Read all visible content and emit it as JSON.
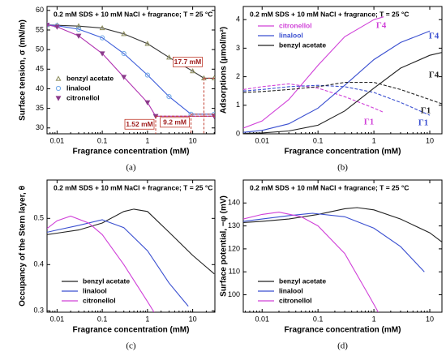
{
  "chart_data": [
    {
      "type": "line",
      "panel": "(a)",
      "title": "0.2 mM SDS + 10 mM NaCl + fragrance; T = 25 °C",
      "xlabel": "Fragrance concentration (mM)",
      "ylabel": "Surface tension, σ (mN/m)",
      "xscale": "log",
      "xlim": [
        0.006,
        31
      ],
      "ylim": [
        28.5,
        61
      ],
      "xticks": [
        0.01,
        0.1,
        1,
        10
      ],
      "yticks": [
        30,
        35,
        40,
        45,
        50,
        55,
        60
      ],
      "legend": "lower left",
      "series": [
        {
          "name": "benzyl acetate",
          "color": "#333333",
          "marker": "triangle",
          "markercolor": "#8a8a5a",
          "x": [
            0.006,
            0.01,
            0.03,
            0.1,
            0.3,
            1,
            3,
            10,
            17.7,
            30
          ],
          "values": [
            56.3,
            56.2,
            56,
            55.5,
            54,
            51.5,
            48,
            44.5,
            42.7,
            42.7
          ]
        },
        {
          "name": "linalool",
          "color": "#3a5bd9",
          "marker": "circle",
          "markercolor": "#6fa8e8",
          "x": [
            0.006,
            0.01,
            0.03,
            0.1,
            0.3,
            1,
            3,
            9.2,
            30
          ],
          "values": [
            56.3,
            56.1,
            55.2,
            53,
            49,
            43.5,
            38,
            33.5,
            33.5
          ]
        },
        {
          "name": "citronellol",
          "color": "#b030b0",
          "marker": "triangle-down",
          "markercolor": "#8a3a8a",
          "x": [
            0.006,
            0.01,
            0.03,
            0.1,
            0.3,
            1,
            1.52,
            30
          ],
          "values": [
            56.3,
            55.8,
            53.5,
            49,
            43,
            36.5,
            33,
            33
          ]
        }
      ],
      "annotations": [
        {
          "text": "17.7 mM",
          "x": 17.7,
          "y": 42.7
        },
        {
          "text": "9.2 mM",
          "x": 9.2,
          "y": 33.5
        },
        {
          "text": "1.52 mM",
          "x": 1.52,
          "y": 33
        }
      ]
    },
    {
      "type": "line",
      "panel": "(b)",
      "title": "0.2 mM SDS + 10 mM NaCl + fragrance; T = 25 °C",
      "xlabel": "Fragrance concentration (mM)",
      "ylabel": "Adsorptions (μmol/m²)",
      "xscale": "log",
      "xlim": [
        0.0046,
        16.5
      ],
      "ylim": [
        0,
        4.46
      ],
      "xticks": [
        0.01,
        0.1,
        1,
        10
      ],
      "yticks": [
        0,
        1,
        2,
        3,
        4
      ],
      "legend": "upper left",
      "series": [
        {
          "name": "citronellol",
          "color": "#d040d8",
          "x": [
            0.0046,
            0.01,
            0.03,
            0.1,
            0.3,
            1,
            1.5
          ],
          "values": [
            0.2,
            0.45,
            1.2,
            2.4,
            3.4,
            4.0,
            4.1
          ],
          "gamma1": [
            1.55,
            1.65,
            1.75,
            1.6,
            1.3,
            0.9,
            0.75
          ]
        },
        {
          "name": "linalool",
          "color": "#3a4fd0",
          "x": [
            0.0046,
            0.01,
            0.03,
            0.1,
            0.3,
            1,
            3,
            10
          ],
          "values": [
            0.05,
            0.12,
            0.35,
            0.9,
            1.7,
            2.6,
            3.2,
            3.6
          ],
          "gamma1": [
            1.5,
            1.55,
            1.65,
            1.7,
            1.65,
            1.45,
            1.1,
            0.65
          ]
        },
        {
          "name": "benzyl acetate",
          "color": "#222222",
          "x": [
            0.0046,
            0.01,
            0.03,
            0.1,
            0.3,
            1,
            3,
            10,
            16.5
          ],
          "values": [
            0.01,
            0.03,
            0.1,
            0.3,
            0.8,
            1.6,
            2.3,
            2.75,
            2.85
          ],
          "gamma1": [
            1.45,
            1.48,
            1.55,
            1.65,
            1.8,
            1.8,
            1.55,
            1.2,
            1.05
          ]
        }
      ],
      "annotations": [
        {
          "text": "Γ4",
          "color": "#d040d8"
        },
        {
          "text": "Γ4",
          "color": "#3a4fd0"
        },
        {
          "text": "Γ4",
          "color": "#222222"
        },
        {
          "text": "Γ1",
          "color": "#222222"
        },
        {
          "text": "Γ1",
          "color": "#d040d8"
        },
        {
          "text": "Γ1",
          "color": "#3a4fd0"
        }
      ]
    },
    {
      "type": "line",
      "panel": "(c)",
      "title": "0.2 mM SDS + 10 mM NaCl + fragrance; T = 25 °C",
      "xlabel": "Fragrance concentration (mM)",
      "ylabel": "Occupancy of the Stern layer, θ",
      "xscale": "log",
      "xlim": [
        0.006,
        31
      ],
      "ylim": [
        0.297,
        0.583
      ],
      "xticks": [
        0.01,
        0.1,
        1,
        10
      ],
      "yticks": [
        0.3,
        0.4,
        0.5
      ],
      "legend": "lower left",
      "series": [
        {
          "name": "benzyl acetate",
          "color": "#222222",
          "x": [
            0.006,
            0.01,
            0.03,
            0.1,
            0.3,
            0.5,
            1,
            3,
            10,
            30
          ],
          "values": [
            0.465,
            0.468,
            0.475,
            0.49,
            0.515,
            0.52,
            0.515,
            0.47,
            0.42,
            0.38
          ]
        },
        {
          "name": "linalool",
          "color": "#3a4fd0",
          "x": [
            0.006,
            0.01,
            0.03,
            0.1,
            0.3,
            1,
            3,
            8
          ],
          "values": [
            0.47,
            0.475,
            0.485,
            0.497,
            0.48,
            0.43,
            0.36,
            0.31
          ]
        },
        {
          "name": "citronellol",
          "color": "#d040d8",
          "x": [
            0.006,
            0.01,
            0.02,
            0.05,
            0.1,
            0.3,
            1,
            1.4
          ],
          "values": [
            0.478,
            0.495,
            0.505,
            0.49,
            0.465,
            0.4,
            0.32,
            0.297
          ]
        }
      ]
    },
    {
      "type": "line",
      "panel": "(d)",
      "title": "0.2 mM SDS + 10 mM NaCl + fragrance; T = 25 °C",
      "xlabel": "Fragrance concentration (mM)",
      "ylabel": "Surface potential, −φ (mV)",
      "xscale": "log",
      "xlim": [
        0.0046,
        16.5
      ],
      "ylim": [
        92.4,
        150
      ],
      "xticks": [
        0.01,
        0.1,
        1,
        10
      ],
      "yticks": [
        100,
        110,
        120,
        130,
        140
      ],
      "legend": "lower left",
      "series": [
        {
          "name": "benzyl acetate",
          "color": "#222222",
          "x": [
            0.0046,
            0.01,
            0.03,
            0.1,
            0.3,
            0.5,
            1,
            3,
            10,
            16.5
          ],
          "values": [
            131.5,
            132,
            133,
            135,
            137.5,
            138,
            137,
            133,
            127,
            123
          ]
        },
        {
          "name": "linalool",
          "color": "#3a4fd0",
          "x": [
            0.0046,
            0.01,
            0.03,
            0.08,
            0.3,
            1,
            3,
            8
          ],
          "values": [
            132,
            133,
            134.5,
            135.5,
            134,
            129,
            121,
            110
          ]
        },
        {
          "name": "citronellol",
          "color": "#d040d8",
          "x": [
            0.0046,
            0.01,
            0.02,
            0.05,
            0.1,
            0.3,
            0.8,
            1.2
          ],
          "values": [
            133,
            135,
            136,
            134,
            130,
            118,
            100,
            92.4
          ]
        }
      ]
    }
  ]
}
